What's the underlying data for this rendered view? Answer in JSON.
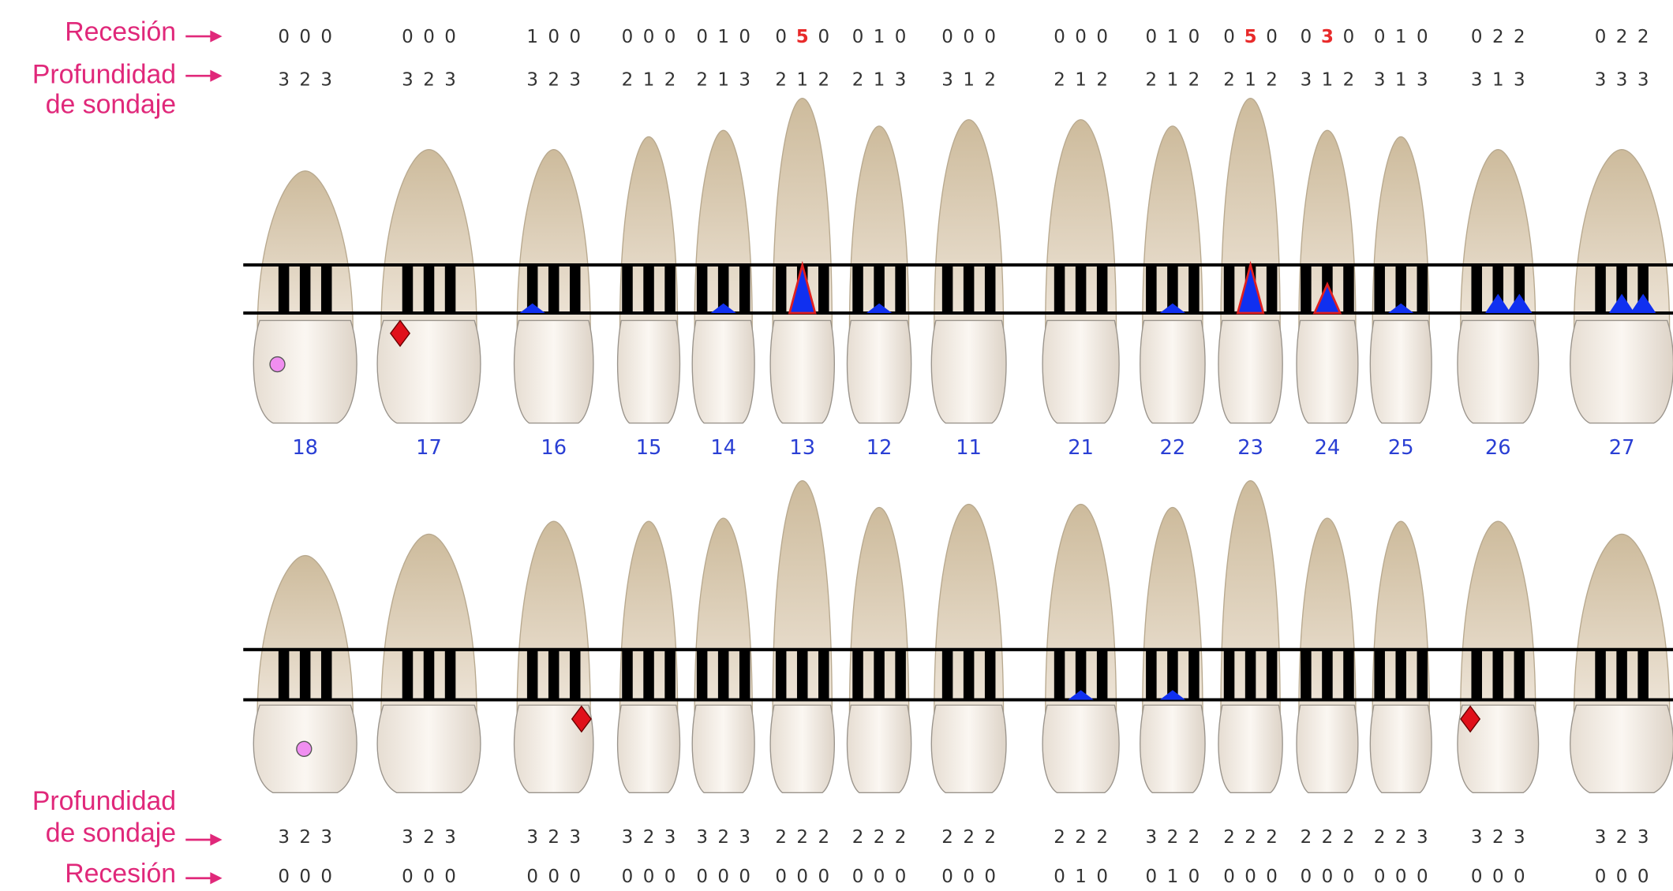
{
  "labels": {
    "recession": "Recesión",
    "probing_line1": "Profundidad",
    "probing_line2": "de sondaje"
  },
  "upper": {
    "teeth": [
      {
        "number": "18",
        "recession": [
          0,
          0,
          0
        ],
        "probing": [
          3,
          2,
          3
        ]
      },
      {
        "number": "17",
        "recession": [
          0,
          0,
          0
        ],
        "probing": [
          3,
          2,
          3
        ]
      },
      {
        "number": "16",
        "recession": [
          1,
          0,
          0
        ],
        "probing": [
          3,
          2,
          3
        ]
      },
      {
        "number": "15",
        "recession": [
          0,
          0,
          0
        ],
        "probing": [
          2,
          1,
          2
        ]
      },
      {
        "number": "14",
        "recession": [
          0,
          1,
          0
        ],
        "probing": [
          2,
          1,
          3
        ]
      },
      {
        "number": "13",
        "recession": [
          0,
          5,
          0
        ],
        "probing": [
          2,
          1,
          2
        ]
      },
      {
        "number": "12",
        "recession": [
          0,
          1,
          0
        ],
        "probing": [
          2,
          1,
          3
        ]
      },
      {
        "number": "11",
        "recession": [
          0,
          0,
          0
        ],
        "probing": [
          3,
          1,
          2
        ]
      },
      {
        "number": "21",
        "recession": [
          0,
          0,
          0
        ],
        "probing": [
          2,
          1,
          2
        ]
      },
      {
        "number": "22",
        "recession": [
          0,
          1,
          0
        ],
        "probing": [
          2,
          1,
          2
        ]
      },
      {
        "number": "23",
        "recession": [
          0,
          5,
          0
        ],
        "probing": [
          2,
          1,
          2
        ]
      },
      {
        "number": "24",
        "recession": [
          0,
          3,
          0
        ],
        "probing": [
          3,
          1,
          2
        ]
      },
      {
        "number": "25",
        "recession": [
          0,
          1,
          0
        ],
        "probing": [
          3,
          1,
          3
        ]
      },
      {
        "number": "26",
        "recession": [
          0,
          2,
          2
        ],
        "probing": [
          3,
          1,
          3
        ]
      },
      {
        "number": "27",
        "recession": [
          0,
          2,
          2
        ],
        "probing": [
          3,
          3,
          3
        ]
      }
    ]
  },
  "lower": {
    "teeth": [
      {
        "probing": [
          3,
          2,
          3
        ],
        "recession": [
          0,
          0,
          0
        ]
      },
      {
        "probing": [
          3,
          2,
          3
        ],
        "recession": [
          0,
          0,
          0
        ]
      },
      {
        "probing": [
          3,
          2,
          3
        ],
        "recession": [
          0,
          0,
          0
        ]
      },
      {
        "probing": [
          3,
          2,
          3
        ],
        "recession": [
          0,
          0,
          0
        ]
      },
      {
        "probing": [
          3,
          2,
          3
        ],
        "recession": [
          0,
          0,
          0
        ]
      },
      {
        "probing": [
          2,
          2,
          2
        ],
        "recession": [
          0,
          0,
          0
        ]
      },
      {
        "probing": [
          2,
          2,
          2
        ],
        "recession": [
          0,
          0,
          0
        ]
      },
      {
        "probing": [
          2,
          2,
          2
        ],
        "recession": [
          0,
          0,
          0
        ]
      },
      {
        "probing": [
          2,
          2,
          2
        ],
        "recession": [
          0,
          1,
          0
        ]
      },
      {
        "probing": [
          3,
          2,
          2
        ],
        "recession": [
          0,
          1,
          0
        ]
      },
      {
        "probing": [
          2,
          2,
          2
        ],
        "recession": [
          0,
          0,
          0
        ]
      },
      {
        "probing": [
          2,
          2,
          2
        ],
        "recession": [
          0,
          0,
          0
        ]
      },
      {
        "probing": [
          2,
          2,
          3
        ],
        "recession": [
          0,
          0,
          0
        ]
      },
      {
        "probing": [
          3,
          2,
          3
        ],
        "recession": [
          0,
          0,
          0
        ]
      },
      {
        "probing": [
          3,
          2,
          3
        ],
        "recession": [
          0,
          0,
          0
        ]
      }
    ]
  }
}
